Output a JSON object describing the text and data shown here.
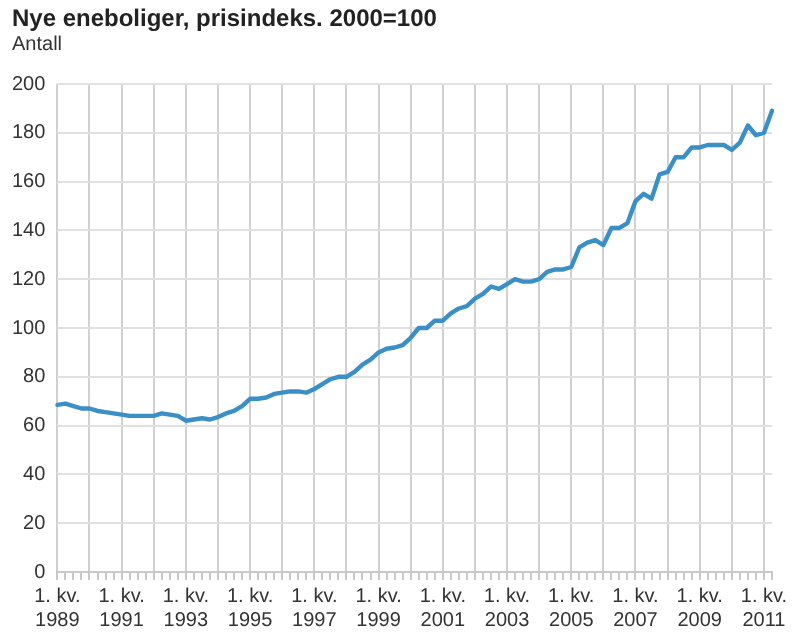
{
  "chart_data": {
    "type": "line",
    "title": "Nye eneboliger, prisindeks. 2000=100",
    "ylabel": "Antall",
    "categories": [
      "1. kv. 1989",
      null,
      null,
      null,
      null,
      null,
      null,
      null,
      "1. kv. 1991",
      null,
      null,
      null,
      null,
      null,
      null,
      null,
      "1. kv. 1993",
      null,
      null,
      null,
      null,
      null,
      null,
      null,
      "1. kv. 1995",
      null,
      null,
      null,
      null,
      null,
      null,
      null,
      "1. kv. 1997",
      null,
      null,
      null,
      null,
      null,
      null,
      null,
      "1. kv. 1999",
      null,
      null,
      null,
      null,
      null,
      null,
      null,
      "1. kv. 2001",
      null,
      null,
      null,
      null,
      null,
      null,
      null,
      "1. kv. 2003",
      null,
      null,
      null,
      null,
      null,
      null,
      null,
      "1. kv. 2005",
      null,
      null,
      null,
      null,
      null,
      null,
      null,
      "1. kv. 2007",
      null,
      null,
      null,
      null,
      null,
      null,
      null,
      "1. kv. 2009",
      null,
      null,
      null,
      null,
      null,
      null,
      null,
      "1. kv. 2011",
      null
    ],
    "series": [
      {
        "color": "#3a8fc6",
        "values": [
          68.5,
          69,
          68,
          67,
          67,
          66,
          65.5,
          65,
          64.5,
          64,
          64,
          64,
          64,
          65,
          64.5,
          64,
          62,
          62.5,
          63,
          62.5,
          63.5,
          65,
          66,
          68,
          71,
          71,
          71.5,
          73,
          73.5,
          74,
          74,
          73.5,
          75,
          77,
          79,
          80,
          80,
          82,
          85,
          87,
          90,
          91.5,
          92,
          93,
          96,
          100,
          100,
          103,
          103,
          106,
          108,
          109,
          112,
          114,
          117,
          116,
          118,
          120,
          119,
          119,
          120,
          123,
          124,
          124,
          125,
          133,
          135,
          136,
          134,
          141,
          141,
          143,
          152,
          155,
          153,
          163,
          164,
          170,
          170,
          174,
          174,
          175,
          175,
          175,
          173,
          176,
          183,
          179,
          180,
          189
        ]
      }
    ],
    "ylim": [
      0,
      200
    ],
    "yticks": [
      0,
      20,
      40,
      60,
      80,
      100,
      120,
      140,
      160,
      180,
      200
    ],
    "grid": true,
    "legend": false,
    "marker": "none",
    "line_style": "solid"
  }
}
